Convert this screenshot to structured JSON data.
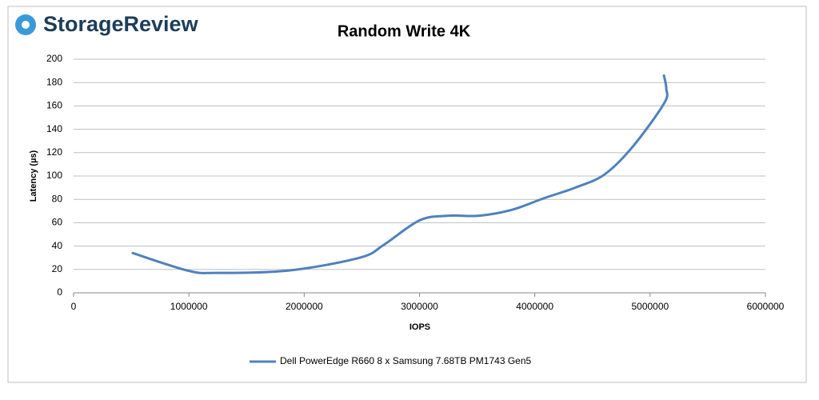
{
  "logo": "StorageReview",
  "chart_data": {
    "type": "line",
    "title": "Random Write 4K",
    "x_label": "IOPS",
    "y_label": "Latency (µs)",
    "xlim": [
      0,
      6000000
    ],
    "xticks": [
      0,
      1000000,
      2000000,
      3000000,
      4000000,
      5000000,
      6000000
    ],
    "ylim": [
      0,
      200
    ],
    "yticks": [
      0,
      20,
      40,
      60,
      80,
      100,
      120,
      140,
      160,
      180,
      200
    ],
    "grid": true,
    "legend": "bottom",
    "series": [
      {
        "name": "Dell PowerEdge R660 8 x Samsung 7.68TB PM1743 Gen5",
        "color": "#4f81bd",
        "x": [
          513000,
          990000,
          1234000,
          1860000,
          2480000,
          2690000,
          3000000,
          3250000,
          3520000,
          3800000,
          4080000,
          4350000,
          4600000,
          4840000,
          5120000,
          5140000,
          5120000
        ],
        "values": [
          34,
          19,
          17,
          19,
          30,
          41,
          62,
          66,
          66,
          71,
          81,
          90,
          101,
          124,
          162,
          175,
          186
        ]
      }
    ]
  }
}
